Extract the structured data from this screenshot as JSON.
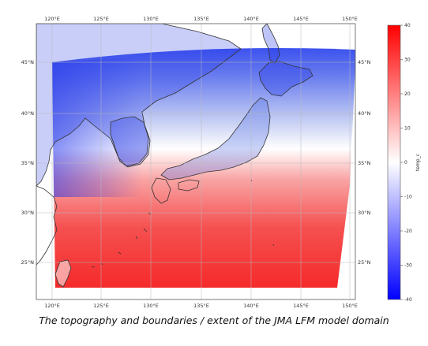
{
  "map": {
    "lon_labels": [
      "120°E",
      "125°E",
      "130°E",
      "135°E",
      "140°E",
      "145°E",
      "150°E"
    ],
    "lat_labels": [
      "45°N",
      "40°N",
      "35°N",
      "30°N",
      "25°N"
    ],
    "extent": {
      "lon": [
        119,
        150.5
      ],
      "lat": [
        21,
        49
      ]
    }
  },
  "colorbar": {
    "label": "temp_c",
    "ticks": [
      "40",
      "30",
      "20",
      "10",
      "0",
      "-10",
      "-20",
      "-30",
      "-40"
    ],
    "colors": {
      "high": "#ff0000",
      "mid": "#ffffff",
      "low": "#0000ff"
    },
    "range": [
      -40,
      40
    ]
  },
  "caption": "The topography and boundaries / extent of the JMA LFM model domain"
}
